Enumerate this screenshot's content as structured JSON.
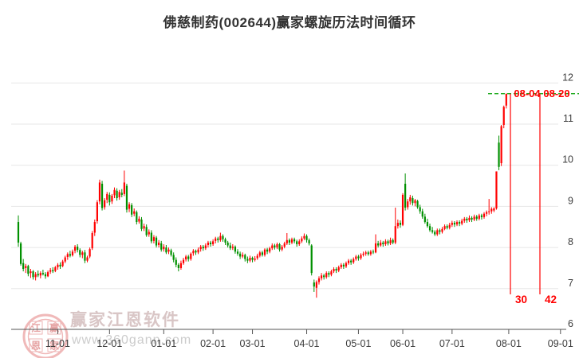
{
  "title": "佛慈制药(002644)赢家螺旋历法时间循环",
  "y_axis": {
    "tick_labels": [
      "12",
      "11",
      "10",
      "9",
      "8",
      "7",
      "6"
    ]
  },
  "x_axis": {
    "tick_labels": [
      "11-01",
      "12-01",
      "01-01",
      "02-01",
      "03-01",
      "04-01",
      "05-01",
      "06-01",
      "07-01",
      "08-01",
      "09-01"
    ]
  },
  "cycle_annotations": {
    "dates": [
      "08-04",
      "08-20"
    ],
    "counts": [
      "30",
      "42"
    ],
    "label_color": "#ff0000",
    "line_color": "#00a000"
  },
  "watermark": {
    "logo_text": "赢家江恩软件",
    "url_text": "www.360gann.com",
    "stamp_chars": [
      "江",
      "赢",
      "恩",
      "家"
    ]
  },
  "chart_data": {
    "type": "candlestick",
    "title": "佛慈制药(002644)赢家螺旋历法时间循环",
    "ylim": [
      6,
      12
    ],
    "grid": true,
    "up_color": "#ff0000",
    "down_color": "#009000",
    "last_price": 11.74,
    "candles": [
      [
        8.62,
        8.78,
        8.02,
        8.12
      ],
      [
        8.1,
        8.14,
        7.56,
        7.6
      ],
      [
        7.62,
        7.72,
        7.42,
        7.48
      ],
      [
        7.5,
        7.6,
        7.38,
        7.55
      ],
      [
        7.55,
        7.58,
        7.3,
        7.36
      ],
      [
        7.38,
        7.48,
        7.26,
        7.42
      ],
      [
        7.42,
        7.45,
        7.22,
        7.28
      ],
      [
        7.28,
        7.4,
        7.2,
        7.35
      ],
      [
        7.36,
        7.44,
        7.28,
        7.32
      ],
      [
        7.32,
        7.42,
        7.25,
        7.38
      ],
      [
        7.38,
        7.46,
        7.32,
        7.35
      ],
      [
        7.35,
        7.4,
        7.24,
        7.3
      ],
      [
        7.3,
        7.44,
        7.28,
        7.4
      ],
      [
        7.41,
        7.5,
        7.36,
        7.45
      ],
      [
        7.45,
        7.52,
        7.38,
        7.42
      ],
      [
        7.43,
        7.55,
        7.4,
        7.52
      ],
      [
        7.52,
        7.62,
        7.46,
        7.58
      ],
      [
        7.58,
        7.64,
        7.48,
        7.54
      ],
      [
        7.55,
        7.7,
        7.52,
        7.66
      ],
      [
        7.66,
        7.8,
        7.62,
        7.76
      ],
      [
        7.77,
        7.88,
        7.7,
        7.84
      ],
      [
        7.84,
        7.92,
        7.76,
        7.8
      ],
      [
        7.81,
        7.95,
        7.78,
        7.9
      ],
      [
        7.92,
        8.06,
        7.86,
        8.02
      ],
      [
        8.02,
        8.08,
        7.88,
        7.94
      ],
      [
        7.94,
        7.98,
        7.76,
        7.82
      ],
      [
        7.82,
        7.92,
        7.74,
        7.88
      ],
      [
        7.88,
        7.94,
        7.62,
        7.68
      ],
      [
        7.68,
        7.8,
        7.64,
        7.76
      ],
      [
        7.78,
        8.0,
        7.74,
        7.96
      ],
      [
        7.98,
        8.4,
        7.94,
        8.35
      ],
      [
        8.36,
        8.68,
        8.28,
        8.62
      ],
      [
        8.64,
        9.15,
        8.58,
        9.1
      ],
      [
        9.12,
        9.65,
        9.05,
        9.58
      ],
      [
        9.55,
        9.62,
        8.9,
        8.96
      ],
      [
        8.98,
        9.2,
        8.92,
        9.15
      ],
      [
        9.16,
        9.35,
        9.08,
        9.3
      ],
      [
        9.28,
        9.34,
        9.02,
        9.1
      ],
      [
        9.12,
        9.3,
        9.06,
        9.26
      ],
      [
        9.27,
        9.46,
        9.2,
        9.4
      ],
      [
        9.38,
        9.44,
        9.14,
        9.2
      ],
      [
        9.22,
        9.4,
        9.16,
        9.35
      ],
      [
        9.33,
        9.42,
        9.22,
        9.28
      ],
      [
        9.3,
        9.87,
        9.25,
        9.58
      ],
      [
        9.5,
        9.55,
        8.85,
        8.92
      ],
      [
        8.94,
        9.1,
        8.86,
        9.05
      ],
      [
        9.03,
        9.08,
        8.74,
        8.8
      ],
      [
        8.82,
        8.95,
        8.76,
        8.88
      ],
      [
        8.86,
        8.9,
        8.56,
        8.62
      ],
      [
        8.63,
        8.76,
        8.58,
        8.7
      ],
      [
        8.68,
        8.74,
        8.4,
        8.45
      ],
      [
        8.46,
        8.58,
        8.4,
        8.52
      ],
      [
        8.5,
        8.56,
        8.26,
        8.3
      ],
      [
        8.32,
        8.44,
        8.26,
        8.38
      ],
      [
        8.36,
        8.42,
        8.1,
        8.15
      ],
      [
        8.16,
        8.3,
        8.1,
        8.25
      ],
      [
        8.24,
        8.28,
        8.0,
        8.05
      ],
      [
        8.06,
        8.18,
        8.0,
        8.12
      ],
      [
        8.1,
        8.16,
        7.9,
        7.95
      ],
      [
        7.96,
        8.08,
        7.9,
        8.02
      ],
      [
        8.0,
        8.06,
        7.84,
        7.88
      ],
      [
        7.9,
        8.0,
        7.84,
        7.95
      ],
      [
        7.93,
        7.97,
        7.78,
        7.82
      ],
      [
        7.82,
        7.88,
        7.64,
        7.7
      ],
      [
        7.7,
        7.76,
        7.52,
        7.58
      ],
      [
        7.58,
        7.62,
        7.42,
        7.5
      ],
      [
        7.5,
        7.68,
        7.46,
        7.62
      ],
      [
        7.62,
        7.75,
        7.58,
        7.7
      ],
      [
        7.71,
        7.82,
        7.66,
        7.78
      ],
      [
        7.78,
        7.82,
        7.66,
        7.72
      ],
      [
        7.72,
        7.88,
        7.68,
        7.85
      ],
      [
        7.86,
        7.96,
        7.8,
        7.92
      ],
      [
        7.92,
        7.95,
        7.82,
        7.88
      ],
      [
        7.88,
        8.0,
        7.84,
        7.95
      ],
      [
        7.96,
        8.06,
        7.9,
        8.02
      ],
      [
        8.02,
        8.06,
        7.92,
        7.98
      ],
      [
        7.98,
        8.1,
        7.94,
        8.05
      ],
      [
        8.06,
        8.16,
        8.0,
        8.12
      ],
      [
        8.12,
        8.16,
        8.02,
        8.08
      ],
      [
        8.08,
        8.2,
        8.04,
        8.15
      ],
      [
        8.16,
        8.26,
        8.1,
        8.22
      ],
      [
        8.22,
        8.26,
        8.12,
        8.18
      ],
      [
        8.18,
        8.36,
        8.14,
        8.28
      ],
      [
        8.28,
        8.32,
        8.14,
        8.2
      ],
      [
        8.2,
        8.24,
        8.06,
        8.12
      ],
      [
        8.12,
        8.16,
        8.0,
        8.05
      ],
      [
        8.05,
        8.12,
        7.94,
        7.98
      ],
      [
        7.99,
        8.08,
        7.94,
        8.02
      ],
      [
        8.02,
        8.05,
        7.85,
        7.9
      ],
      [
        7.9,
        7.96,
        7.8,
        7.85
      ],
      [
        7.85,
        7.9,
        7.72,
        7.78
      ],
      [
        7.78,
        7.88,
        7.74,
        7.82
      ],
      [
        7.82,
        7.85,
        7.66,
        7.72
      ],
      [
        7.72,
        7.78,
        7.62,
        7.68
      ],
      [
        7.68,
        7.8,
        7.64,
        7.75
      ],
      [
        7.75,
        7.78,
        7.64,
        7.7
      ],
      [
        7.7,
        7.79,
        7.66,
        7.73
      ],
      [
        7.74,
        7.85,
        7.7,
        7.8
      ],
      [
        7.8,
        7.92,
        7.76,
        7.88
      ],
      [
        7.88,
        7.92,
        7.78,
        7.82
      ],
      [
        7.82,
        7.98,
        7.78,
        7.95
      ],
      [
        7.95,
        7.99,
        7.84,
        7.9
      ],
      [
        7.9,
        8.02,
        7.86,
        7.98
      ],
      [
        7.98,
        8.1,
        7.94,
        8.05
      ],
      [
        8.05,
        8.09,
        7.95,
        8.0
      ],
      [
        8.0,
        8.12,
        7.96,
        8.08
      ],
      [
        8.08,
        8.11,
        7.9,
        7.95
      ],
      [
        7.95,
        8.06,
        7.91,
        8.02
      ],
      [
        8.02,
        8.14,
        7.98,
        8.1
      ],
      [
        8.1,
        8.35,
        8.06,
        8.18
      ],
      [
        8.18,
        8.22,
        8.06,
        8.12
      ],
      [
        8.12,
        8.24,
        8.08,
        8.2
      ],
      [
        8.2,
        8.24,
        8.1,
        8.15
      ],
      [
        8.15,
        8.19,
        8.02,
        8.08
      ],
      [
        8.08,
        8.2,
        8.04,
        8.15
      ],
      [
        8.15,
        8.27,
        8.11,
        8.22
      ],
      [
        8.22,
        8.34,
        8.18,
        8.28
      ],
      [
        8.28,
        8.32,
        8.12,
        8.18
      ],
      [
        8.18,
        8.22,
        8.05,
        8.1
      ],
      [
        8.05,
        8.08,
        7.32,
        7.38
      ],
      [
        7.15,
        7.22,
        6.92,
        7.05
      ],
      [
        7.02,
        7.2,
        6.78,
        7.16
      ],
      [
        7.16,
        7.3,
        7.1,
        7.25
      ],
      [
        7.25,
        7.38,
        7.2,
        7.32
      ],
      [
        7.32,
        7.36,
        7.22,
        7.28
      ],
      [
        7.28,
        7.42,
        7.24,
        7.38
      ],
      [
        7.38,
        7.42,
        7.28,
        7.34
      ],
      [
        7.34,
        7.46,
        7.3,
        7.42
      ],
      [
        7.42,
        7.52,
        7.38,
        7.48
      ],
      [
        7.48,
        7.52,
        7.38,
        7.44
      ],
      [
        7.44,
        7.56,
        7.4,
        7.52
      ],
      [
        7.52,
        7.62,
        7.48,
        7.58
      ],
      [
        7.58,
        7.62,
        7.48,
        7.54
      ],
      [
        7.54,
        7.66,
        7.5,
        7.62
      ],
      [
        7.62,
        7.72,
        7.58,
        7.68
      ],
      [
        7.68,
        7.72,
        7.58,
        7.64
      ],
      [
        7.64,
        7.76,
        7.6,
        7.72
      ],
      [
        7.72,
        7.82,
        7.68,
        7.78
      ],
      [
        7.78,
        7.82,
        7.68,
        7.74
      ],
      [
        7.74,
        7.86,
        7.7,
        7.82
      ],
      [
        7.82,
        7.9,
        7.78,
        7.85
      ],
      [
        7.85,
        7.92,
        7.8,
        7.88
      ],
      [
        7.88,
        7.92,
        7.8,
        7.84
      ],
      [
        7.84,
        7.94,
        7.8,
        7.9
      ],
      [
        7.9,
        7.95,
        7.84,
        7.88
      ],
      [
        7.88,
        8.32,
        7.86,
        8.1
      ],
      [
        8.1,
        8.16,
        8.0,
        8.05
      ],
      [
        8.05,
        8.18,
        8.02,
        8.12
      ],
      [
        8.12,
        8.16,
        8.02,
        8.08
      ],
      [
        8.08,
        8.2,
        8.04,
        8.15
      ],
      [
        8.15,
        8.19,
        8.05,
        8.1
      ],
      [
        8.1,
        8.24,
        8.06,
        8.18
      ],
      [
        8.18,
        8.22,
        8.08,
        8.12
      ],
      [
        8.12,
        8.97,
        8.08,
        8.52
      ],
      [
        8.52,
        8.68,
        8.46,
        8.6
      ],
      [
        8.6,
        8.66,
        8.48,
        8.55
      ],
      [
        8.55,
        9.32,
        8.52,
        9.28
      ],
      [
        9.55,
        9.8,
        8.9,
        8.97
      ],
      [
        8.98,
        9.18,
        8.92,
        9.12
      ],
      [
        9.12,
        9.28,
        9.04,
        9.22
      ],
      [
        9.2,
        9.26,
        9.02,
        9.08
      ],
      [
        9.08,
        9.18,
        9.0,
        9.15
      ],
      [
        9.13,
        9.16,
        8.94,
        8.98
      ],
      [
        8.98,
        9.04,
        8.82,
        8.88
      ],
      [
        8.88,
        8.94,
        8.7,
        8.75
      ],
      [
        8.75,
        8.82,
        8.58,
        8.62
      ],
      [
        8.62,
        8.7,
        8.48,
        8.52
      ],
      [
        8.52,
        8.58,
        8.38,
        8.42
      ],
      [
        8.42,
        8.5,
        8.34,
        8.38
      ],
      [
        8.38,
        8.42,
        8.28,
        8.32
      ],
      [
        8.32,
        8.46,
        8.28,
        8.42
      ],
      [
        8.42,
        8.46,
        8.32,
        8.38
      ],
      [
        8.38,
        8.5,
        8.34,
        8.45
      ],
      [
        8.45,
        8.56,
        8.42,
        8.52
      ],
      [
        8.52,
        8.56,
        8.44,
        8.48
      ],
      [
        8.48,
        8.6,
        8.44,
        8.55
      ],
      [
        8.55,
        8.65,
        8.5,
        8.6
      ],
      [
        8.6,
        8.64,
        8.5,
        8.56
      ],
      [
        8.56,
        8.66,
        8.52,
        8.62
      ],
      [
        8.62,
        8.66,
        8.52,
        8.58
      ],
      [
        8.58,
        8.7,
        8.54,
        8.65
      ],
      [
        8.65,
        8.74,
        8.6,
        8.7
      ],
      [
        8.7,
        8.74,
        8.6,
        8.66
      ],
      [
        8.66,
        8.78,
        8.62,
        8.72
      ],
      [
        8.72,
        8.76,
        8.62,
        8.68
      ],
      [
        8.68,
        8.8,
        8.64,
        8.75
      ],
      [
        8.75,
        8.79,
        8.65,
        8.7
      ],
      [
        8.7,
        8.82,
        8.66,
        8.78
      ],
      [
        8.78,
        8.82,
        8.68,
        8.74
      ],
      [
        8.74,
        8.86,
        8.7,
        8.82
      ],
      [
        8.82,
        8.9,
        8.76,
        8.86
      ],
      [
        8.86,
        9.18,
        8.8,
        8.88
      ],
      [
        8.88,
        8.98,
        8.82,
        8.94
      ],
      [
        8.9,
        8.98,
        8.86,
        8.95
      ],
      [
        8.95,
        9.85,
        8.92,
        9.85
      ],
      [
        10.55,
        10.72,
        9.88,
        9.96
      ],
      [
        10.05,
        10.98,
        9.98,
        10.95
      ],
      [
        10.98,
        11.45,
        10.9,
        11.42
      ],
      [
        11.45,
        11.74,
        11.38,
        11.74
      ]
    ]
  }
}
